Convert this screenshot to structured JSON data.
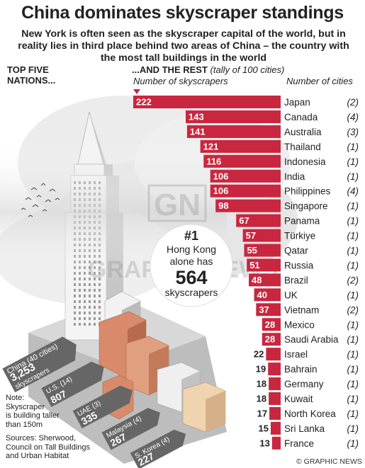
{
  "title": "China dominates skyscraper standings",
  "subtitle": "New York is often seen as the skyscraper capital of the world, but in reality lies in third place behind two areas of China – the country with the most tall buildings in the world",
  "left_section": {
    "line1": "TOP FIVE",
    "line2": "NATIONS..."
  },
  "right_section": {
    "label": "...AND THE REST",
    "note": "(tally of 100 cities)"
  },
  "column_headers": {
    "skyscrapers": "Number of skyscrapers",
    "cities": "Number of cities"
  },
  "callout": {
    "rank": "#1",
    "place": "Hong Kong",
    "line2": "alone has",
    "value": "564",
    "unit": "skyscrapers"
  },
  "note": {
    "l1": "Note:",
    "l2": "Skyscraper",
    "l3": "is building taller",
    "l4": "than 150m"
  },
  "sources": {
    "l1": "Sources: Sherwood,",
    "l2": "Council on Tall Buildings",
    "l3": "and Urban Habitat"
  },
  "credit": "© GRAPHIC NEWS",
  "watermark": {
    "logo": "GN",
    "text": "GRAPHIC NEWS"
  },
  "colors": {
    "bar": "#c8273f",
    "dark_text": "#222222",
    "arrow": "#666666",
    "brick": "#d88a6a",
    "sky": "#e7e7e7"
  },
  "chart_data": {
    "type": "bar",
    "orientation": "horizontal",
    "series_label": "Number of skyscrapers",
    "categories": [
      "Japan",
      "Canada",
      "Australia",
      "Thailand",
      "Indonesia",
      "India",
      "Philippines",
      "Singapore",
      "Panama",
      "Türkiye",
      "Qatar",
      "Russia",
      "Brazil",
      "UK",
      "Vietnam",
      "Mexico",
      "Saudi Arabia",
      "Israel",
      "Bahrain",
      "Germany",
      "Kuwait",
      "North Korea",
      "Sri Lanka",
      "France"
    ],
    "values": [
      222,
      143,
      141,
      121,
      116,
      106,
      106,
      98,
      67,
      57,
      55,
      51,
      48,
      40,
      37,
      28,
      28,
      22,
      19,
      18,
      18,
      17,
      15,
      13
    ],
    "labels": [
      "222",
      "143",
      "141",
      "121",
      "116",
      "106",
      "106",
      "98",
      "67",
      "57",
      "55",
      "51",
      "48",
      "40",
      "37",
      "28",
      "28",
      "22",
      "19",
      "18",
      "18",
      "17",
      "15",
      "13"
    ],
    "cities": [
      "(2)",
      "(4)",
      "(3)",
      "(1)",
      "(1)",
      "(1)",
      "(4)",
      "(1)",
      "(1)",
      "(1)",
      "(1)",
      "(1)",
      "(2)",
      "(1)",
      "(2)",
      "(1)",
      "(1)",
      "(1)",
      "(1)",
      "(1)",
      "(1)",
      "(1)",
      "(1)",
      "(1)"
    ],
    "top_five": [
      {
        "country": "China",
        "cities": "(40 cities)",
        "value": "3,253",
        "unit": "skyscrapers"
      },
      {
        "country": "U.S.",
        "cities": "(14)",
        "value": "807"
      },
      {
        "country": "UAE",
        "cities": "(3)",
        "value": "335"
      },
      {
        "country": "Malaysia",
        "cities": "(4)",
        "value": "267"
      },
      {
        "country": "S. Korea",
        "cities": "(4)",
        "value": "227"
      }
    ]
  }
}
